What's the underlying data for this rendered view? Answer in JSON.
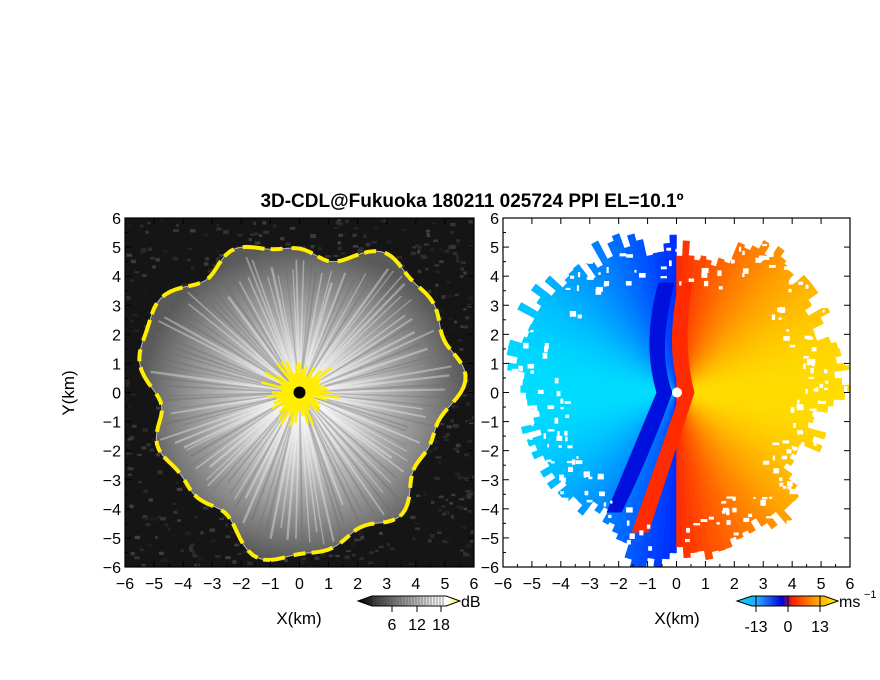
{
  "chart_data": [
    {
      "type": "heatmap",
      "panel": "left",
      "variable": "SNR",
      "title": "3D-CDL@Fukuoka 180211 025724 PPI EL=10.1º",
      "xlabel": "X(km)",
      "ylabel": "Y(km)",
      "xlim": [
        -6,
        6
      ],
      "ylim": [
        -6,
        6
      ],
      "xticks": [
        -6,
        -5,
        -4,
        -3,
        -2,
        -1,
        0,
        1,
        2,
        3,
        4,
        5,
        6
      ],
      "yticks": [
        -6,
        -5,
        -4,
        -3,
        -2,
        -1,
        0,
        1,
        2,
        3,
        4,
        5,
        6
      ],
      "colormap": "grayscale",
      "highlight_color": "#ffee00",
      "colorbar": {
        "unit": "dB",
        "ticks": [
          6,
          12,
          18
        ],
        "range": [
          0,
          24
        ]
      },
      "description_values": {
        "center": [
          0,
          0
        ],
        "max_range_km": 5.6
      }
    },
    {
      "type": "heatmap",
      "panel": "right",
      "variable": "radial velocity",
      "xlabel": "X(km)",
      "xlim": [
        -6,
        6
      ],
      "ylim": [
        -6,
        6
      ],
      "xticks": [
        -6,
        -5,
        -4,
        -3,
        -2,
        -1,
        0,
        1,
        2,
        3,
        4,
        5,
        6
      ],
      "yticks": [
        -6,
        -5,
        -4,
        -3,
        -2,
        -1,
        0,
        1,
        2,
        3,
        4,
        5,
        6
      ],
      "colormap": "blue-white-red-yellow",
      "colorbar": {
        "unit": "ms",
        "unit_sup": "−1",
        "ticks": [
          -13,
          0,
          13
        ],
        "range": [
          -20,
          20
        ]
      },
      "description_values": {
        "center": [
          0,
          0
        ],
        "max_range_km": 5.8
      }
    }
  ],
  "colors": {
    "snr_low": "#111111",
    "snr_high": "#ffffff",
    "vel_neg": "#0000e0",
    "vel_neg_light": "#22bbff",
    "vel_pos": "#ff2200",
    "vel_pos_light": "#ffdd00",
    "yellow": "#ffee00"
  }
}
